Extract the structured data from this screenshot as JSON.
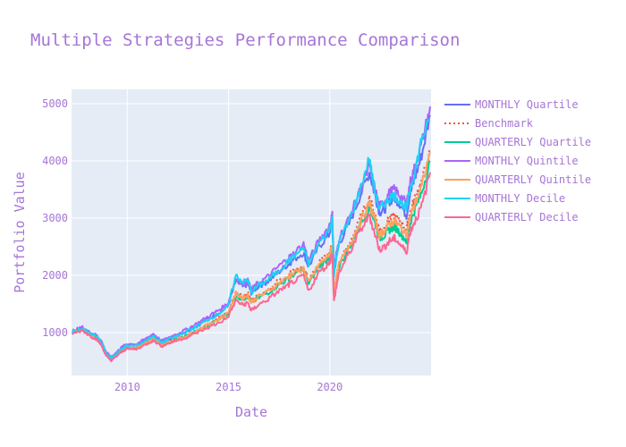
{
  "chart_data": {
    "type": "line",
    "title": "Multiple Strategies Performance Comparison",
    "xlabel": "Date",
    "ylabel": "Portfolio Value",
    "xlim": [
      "2007-04-01",
      "2024-12-31"
    ],
    "ylim": [
      250,
      5250
    ],
    "x_ticks": [
      "2010",
      "2015",
      "2020"
    ],
    "y_ticks": [
      1000,
      2000,
      3000,
      4000,
      5000
    ],
    "grid": true,
    "legend_position": "right",
    "x": [
      "2007-04",
      "2007-10",
      "2008-03",
      "2008-06",
      "2008-09",
      "2008-12",
      "2009-03",
      "2009-06",
      "2009-09",
      "2009-12",
      "2010-06",
      "2010-12",
      "2011-04",
      "2011-09",
      "2011-12",
      "2012-06",
      "2012-12",
      "2013-06",
      "2013-12",
      "2014-06",
      "2014-12",
      "2015-05",
      "2015-09",
      "2015-12",
      "2016-02",
      "2016-06",
      "2016-12",
      "2017-06",
      "2017-12",
      "2018-02",
      "2018-09",
      "2018-12",
      "2019-06",
      "2019-12",
      "2020-02",
      "2020-03",
      "2020-06",
      "2020-12",
      "2021-06",
      "2021-12",
      "2022-03",
      "2022-06",
      "2022-09",
      "2022-12",
      "2023-03",
      "2023-06",
      "2023-10",
      "2023-12",
      "2024-03",
      "2024-07",
      "2024-12"
    ],
    "series": [
      {
        "name": "MONTHLY Quartile",
        "color": "#636efa",
        "dash": "solid",
        "values": [
          1020,
          1080,
          980,
          950,
          850,
          650,
          560,
          640,
          720,
          780,
          780,
          880,
          950,
          830,
          880,
          950,
          1030,
          1120,
          1230,
          1330,
          1450,
          1900,
          1800,
          1850,
          1700,
          1800,
          1900,
          2050,
          2200,
          2250,
          2400,
          2150,
          2500,
          2700,
          2950,
          2050,
          2550,
          2900,
          3350,
          3800,
          3450,
          3100,
          3150,
          3300,
          3350,
          3250,
          3050,
          3400,
          3700,
          4100,
          4800
        ]
      },
      {
        "name": "Benchmark",
        "color": "#ef553b",
        "dash": "dot",
        "values": [
          1000,
          1060,
          960,
          920,
          820,
          620,
          540,
          610,
          690,
          740,
          740,
          830,
          900,
          790,
          830,
          890,
          960,
          1050,
          1150,
          1240,
          1350,
          1700,
          1620,
          1680,
          1550,
          1640,
          1750,
          1900,
          2000,
          2050,
          2150,
          1900,
          2200,
          2380,
          2550,
          1750,
          2200,
          2550,
          2950,
          3350,
          3100,
          2800,
          2850,
          3000,
          3050,
          2950,
          2800,
          3100,
          3350,
          3650,
          4150
        ]
      },
      {
        "name": "QUARTERLY Quartile",
        "color": "#00cc96",
        "dash": "solid",
        "values": [
          990,
          1050,
          950,
          910,
          810,
          610,
          530,
          600,
          680,
          730,
          730,
          820,
          880,
          780,
          820,
          880,
          940,
          1030,
          1120,
          1210,
          1320,
          1650,
          1580,
          1640,
          1520,
          1600,
          1700,
          1830,
          1940,
          2000,
          2100,
          1850,
          2150,
          2300,
          2480,
          1700,
          2150,
          2480,
          2850,
          3200,
          2950,
          2650,
          2700,
          2800,
          2850,
          2750,
          2600,
          2900,
          3150,
          3450,
          4000
        ]
      },
      {
        "name": "MONTHLY Quintile",
        "color": "#ab63fa",
        "dash": "solid",
        "values": [
          1030,
          1090,
          990,
          960,
          860,
          660,
          570,
          650,
          740,
          800,
          800,
          900,
          980,
          850,
          900,
          980,
          1060,
          1160,
          1270,
          1380,
          1500,
          1950,
          1850,
          1900,
          1750,
          1860,
          1980,
          2150,
          2300,
          2350,
          2550,
          2250,
          2600,
          2850,
          3050,
          2100,
          2650,
          3000,
          3450,
          3900,
          3550,
          3200,
          3300,
          3450,
          3500,
          3400,
          3250,
          3600,
          3900,
          4300,
          4950
        ]
      },
      {
        "name": "QUARTERLY Quintile",
        "color": "#ffa15a",
        "dash": "solid",
        "values": [
          1000,
          1055,
          955,
          915,
          815,
          615,
          535,
          605,
          685,
          735,
          735,
          825,
          890,
          785,
          825,
          885,
          950,
          1040,
          1135,
          1225,
          1335,
          1680,
          1600,
          1660,
          1530,
          1620,
          1720,
          1860,
          1970,
          2020,
          2120,
          1870,
          2180,
          2340,
          2520,
          1720,
          2180,
          2520,
          2900,
          3250,
          3000,
          2700,
          2780,
          2900,
          2950,
          2850,
          2700,
          3000,
          3250,
          3550,
          4150
        ]
      },
      {
        "name": "MONTHLY Decile",
        "color": "#19d3f3",
        "dash": "solid",
        "values": [
          1010,
          1070,
          970,
          940,
          840,
          640,
          550,
          630,
          710,
          770,
          770,
          870,
          940,
          820,
          870,
          940,
          1020,
          1110,
          1220,
          1320,
          1440,
          2000,
          1880,
          1920,
          1700,
          1820,
          1920,
          2080,
          2250,
          2300,
          2480,
          2200,
          2550,
          2780,
          3000,
          2000,
          2600,
          2950,
          3450,
          4050,
          3500,
          3150,
          3250,
          3350,
          3400,
          3300,
          3150,
          3500,
          3800,
          4400,
          4700
        ]
      },
      {
        "name": "QUARTERLY Decile",
        "color": "#ff6692",
        "dash": "solid",
        "values": [
          980,
          1040,
          930,
          890,
          790,
          590,
          510,
          580,
          660,
          710,
          710,
          800,
          860,
          760,
          800,
          860,
          920,
          1000,
          1080,
          1160,
          1260,
          1560,
          1480,
          1520,
          1380,
          1480,
          1580,
          1720,
          1830,
          1880,
          1980,
          1720,
          2050,
          2200,
          2380,
          1550,
          2050,
          2380,
          2750,
          3050,
          2750,
          2450,
          2500,
          2600,
          2650,
          2550,
          2400,
          2750,
          2950,
          3200,
          3800
        ]
      }
    ]
  }
}
